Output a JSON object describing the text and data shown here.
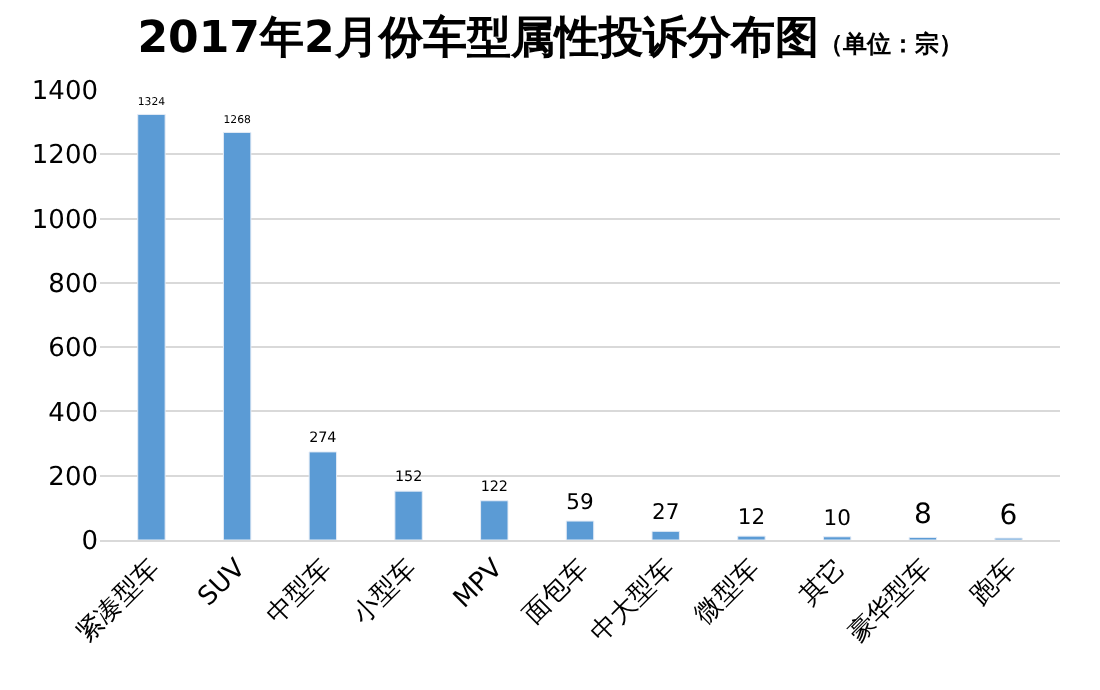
{
  "chart_data": {
    "type": "bar",
    "title": "2017年2月份车型属性投诉分布图",
    "subtitle": "（单位：宗）",
    "categories": [
      "紧凑型车",
      "SUV",
      "中型车",
      "小型车",
      "MPV",
      "面包车",
      "中大型车",
      "微型车",
      "其它",
      "豪华型车",
      "跑车"
    ],
    "values": [
      1324,
      1268,
      274,
      152,
      122,
      59,
      27,
      12,
      10,
      8,
      6
    ],
    "color": "#5b9bd5",
    "ylim": [
      0,
      1400
    ],
    "yticks": [
      0,
      200,
      400,
      600,
      800,
      1000,
      1200,
      1400
    ],
    "grid": "y",
    "data_labels": true,
    "legend": false
  }
}
